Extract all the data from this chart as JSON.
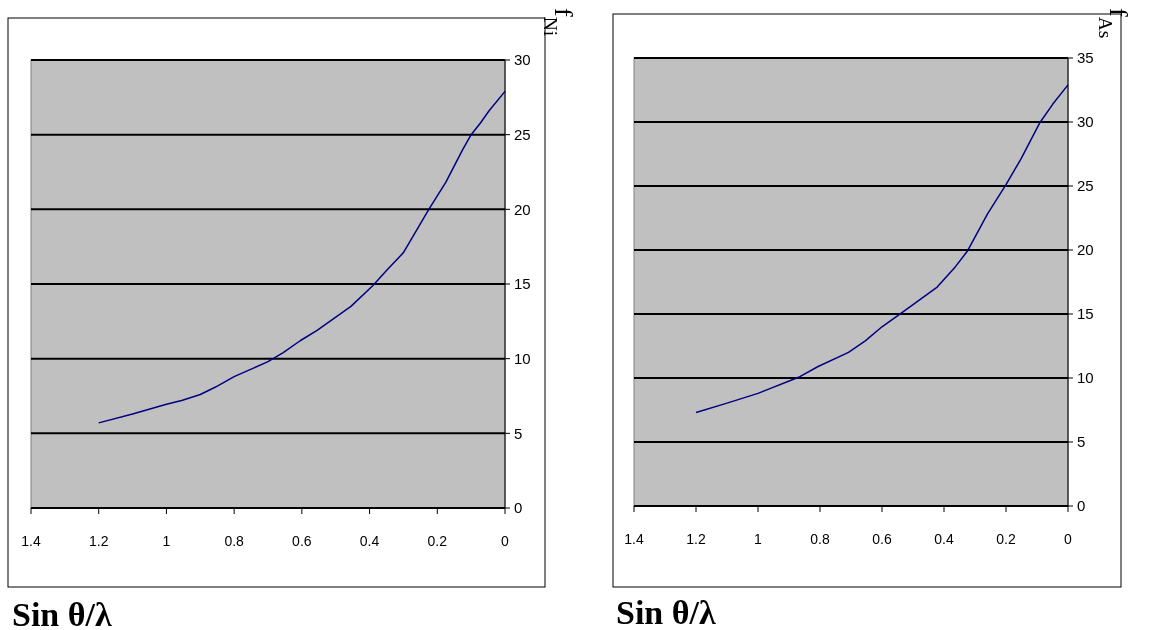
{
  "chart_data": [
    {
      "type": "line",
      "ylabel": "f$_{Ni}$",
      "xlabel": "Sin θ/λ",
      "xlim": [
        1.4,
        0
      ],
      "ylim": [
        0,
        30
      ],
      "xticks": [
        1.4,
        1.2,
        1,
        0.8,
        0.6,
        0.4,
        0.2,
        0
      ],
      "yticks": [
        0,
        5,
        10,
        15,
        20,
        25,
        30
      ],
      "grid": "y",
      "series": [
        {
          "color": "#000080",
          "x": [
            1.2,
            1.1,
            1.0,
            0.955,
            0.9,
            0.855,
            0.8,
            0.7,
            0.655,
            0.605,
            0.555,
            0.455,
            0.39,
            0.35,
            0.3,
            0.225,
            0.175,
            0.125,
            0.1,
            0.072,
            0.047,
            0
          ],
          "values": [
            5.7,
            6.3,
            6.95,
            7.2,
            7.6,
            8.1,
            8.8,
            9.8,
            10.4,
            11.2,
            11.9,
            13.5,
            14.9,
            15.9,
            17.1,
            20.0,
            21.8,
            24.0,
            25.0,
            25.8,
            26.6,
            27.9
          ]
        }
      ]
    },
    {
      "type": "line",
      "ylabel": "f$_{As}$",
      "xlabel": "Sin θ/λ",
      "xlim": [
        1.4,
        0
      ],
      "ylim": [
        0,
        35
      ],
      "xticks": [
        1.4,
        1.2,
        1,
        0.8,
        0.6,
        0.4,
        0.2,
        0
      ],
      "yticks": [
        0,
        5,
        10,
        15,
        20,
        25,
        30,
        35
      ],
      "grid": "y",
      "series": [
        {
          "color": "#000080",
          "x": [
            1.2,
            1.105,
            1.0,
            0.865,
            0.806,
            0.708,
            0.654,
            0.6,
            0.53,
            0.422,
            0.363,
            0.325,
            0.26,
            0.2,
            0.152,
            0.092,
            0.049,
            0
          ],
          "values": [
            7.3,
            8.0,
            8.8,
            10.1,
            10.9,
            12.0,
            12.9,
            14.0,
            15.2,
            17.1,
            18.7,
            19.9,
            22.8,
            25.1,
            27.1,
            29.9,
            31.4,
            32.9
          ]
        }
      ]
    }
  ]
}
